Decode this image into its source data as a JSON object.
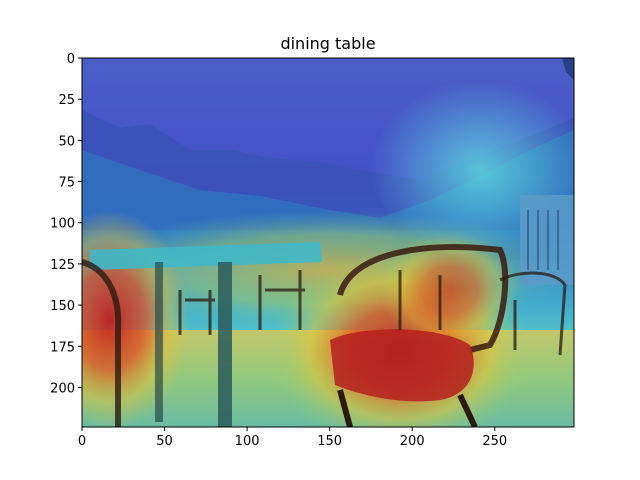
{
  "figure": {
    "title": "dining table",
    "x_ticks": [
      "0",
      "50",
      "100",
      "150",
      "200",
      "250"
    ],
    "x_tick_values": [
      0,
      50,
      100,
      150,
      200,
      250
    ],
    "y_ticks": [
      "0",
      "25",
      "50",
      "75",
      "100",
      "125",
      "150",
      "175",
      "200"
    ],
    "y_tick_values": [
      0,
      25,
      50,
      75,
      100,
      125,
      150,
      175,
      200
    ],
    "x_range": [
      0,
      298
    ],
    "y_range": [
      0,
      224
    ],
    "colormap": "jet",
    "image_description": "Grad-CAM style attention heatmap overlaid on an outdoor terrace photo with chairs and a table in front of mountains"
  }
}
